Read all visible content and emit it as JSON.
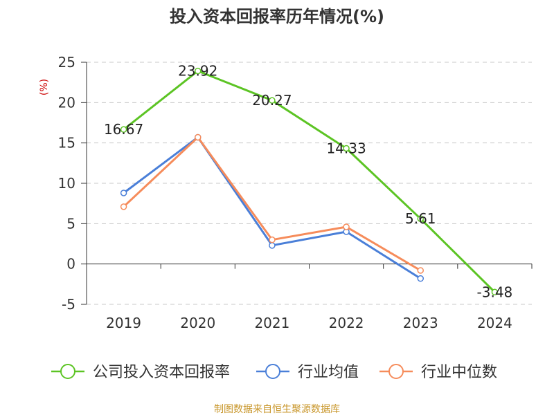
{
  "chart_data": {
    "type": "line",
    "title": "投入资本回报率历年情况(%)",
    "ylabel": "(%)",
    "xlabel": "",
    "categories": [
      "2019",
      "2020",
      "2021",
      "2022",
      "2023",
      "2024"
    ],
    "ylim": [
      -5,
      25
    ],
    "yticks": [
      -5,
      0,
      5,
      10,
      15,
      20,
      25
    ],
    "grid": true,
    "legend_position": "bottom",
    "series": [
      {
        "name": "公司投入资本回报率",
        "color": "#5cc424",
        "values": [
          16.67,
          23.92,
          20.27,
          14.33,
          5.61,
          -3.48
        ],
        "labels": [
          "16.67",
          "23.92",
          "20.27",
          "14.33",
          "5.61",
          "-3.48"
        ],
        "show_labels": true
      },
      {
        "name": "行业均值",
        "color": "#4a7fd8",
        "values": [
          8.8,
          15.7,
          2.3,
          4.0,
          -1.8,
          null
        ],
        "show_labels": false
      },
      {
        "name": "行业中位数",
        "color": "#f68c5b",
        "values": [
          7.1,
          15.7,
          3.0,
          4.6,
          -0.8,
          null
        ],
        "show_labels": false
      }
    ],
    "source_text": "制图数据来自恒生聚源数据库",
    "source_color": "#c8962a",
    "unit_color": "#cc0000"
  }
}
